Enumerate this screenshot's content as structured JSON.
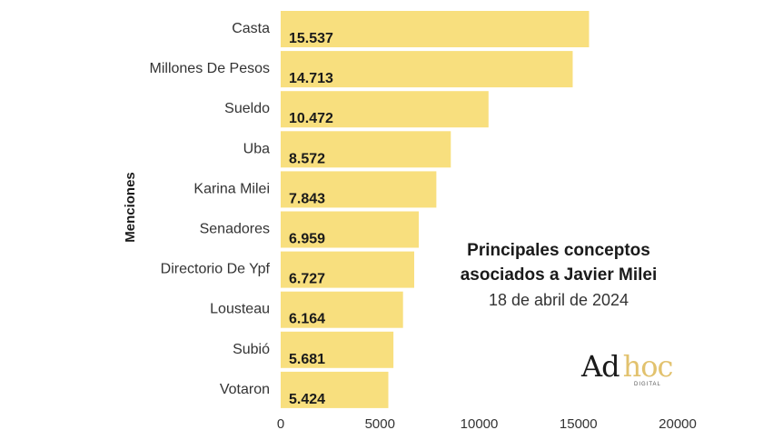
{
  "chart_data": {
    "type": "bar",
    "orientation": "horizontal",
    "categories": [
      "Casta",
      "Millones De Pesos",
      "Sueldo",
      "Uba",
      "Karina Milei",
      "Senadores",
      "Directorio De Ypf",
      "Lousteau",
      "Subió",
      "Votaron"
    ],
    "values": [
      15537,
      14713,
      10472,
      8572,
      7843,
      6959,
      6727,
      6164,
      5681,
      5424
    ],
    "value_labels": [
      "15.537",
      "14.713",
      "10.472",
      "8.572",
      "7.843",
      "6.959",
      "6.727",
      "6.164",
      "5.681",
      "5.424"
    ],
    "xlim": [
      0,
      20000
    ],
    "xticks": [
      0,
      5000,
      10000,
      15000,
      20000
    ],
    "xtick_labels": [
      "0",
      "5000",
      "10000",
      "15000",
      "20000"
    ],
    "ylabel": "Menciones",
    "title": "Principales conceptos asociados a Javier Milei",
    "subtitle": "18 de abril de 2024",
    "bar_color": "#f8df7e",
    "grid": false,
    "legend": "none"
  },
  "logo": {
    "word1": "Ad",
    "word2": "hoc",
    "tagline": "DIGITAL",
    "accent_color": "#e2c26e"
  }
}
